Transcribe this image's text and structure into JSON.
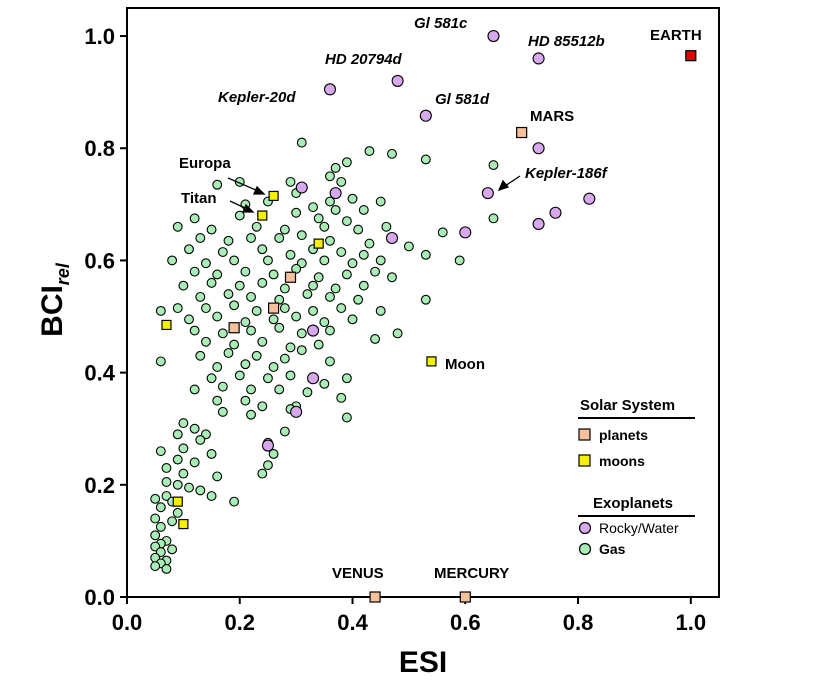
{
  "chart_data": {
    "type": "scatter",
    "xlabel": "ESI",
    "ylabel": "BCI",
    "ylabel_sub": "rel",
    "xlim": [
      0,
      1.05
    ],
    "ylim": [
      0,
      1.05
    ],
    "x_ticks": [
      "0.0",
      "0.2",
      "0.4",
      "0.6",
      "0.8",
      "1.0"
    ],
    "y_ticks": [
      "0.0",
      "0.2",
      "0.4",
      "0.6",
      "0.8",
      "1.0"
    ],
    "legend": {
      "solar_title": "Solar System",
      "planets_label": "planets",
      "moons_label": "moons",
      "exo_title": "Exoplanets",
      "rocky_label": "Rocky/Water",
      "gas_label": "Gas"
    },
    "colors": {
      "planet": "#f5c09a",
      "moon": "#f5f000",
      "rocky": "#d8a8ee",
      "gas": "#a8ecb6",
      "earth": "#e00000"
    },
    "series": [
      {
        "name": "EARTH",
        "category": "earth",
        "points": [
          [
            1.0,
            0.965
          ]
        ]
      },
      {
        "name": "planets",
        "category": "planet",
        "points": [
          [
            0.7,
            0.828
          ],
          [
            0.44,
            0.0
          ],
          [
            0.6,
            0.0
          ],
          [
            0.29,
            0.57
          ],
          [
            0.19,
            0.48
          ],
          [
            0.26,
            0.515
          ]
        ]
      },
      {
        "name": "moons",
        "category": "moon",
        "points": [
          [
            0.26,
            0.715
          ],
          [
            0.24,
            0.68
          ],
          [
            0.54,
            0.42
          ],
          [
            0.07,
            0.485
          ],
          [
            0.09,
            0.17
          ],
          [
            0.1,
            0.13
          ],
          [
            0.34,
            0.63
          ]
        ]
      },
      {
        "name": "Rocky/Water",
        "category": "rocky",
        "points": [
          [
            0.65,
            1.0
          ],
          [
            0.73,
            0.96
          ],
          [
            0.48,
            0.92
          ],
          [
            0.36,
            0.905
          ],
          [
            0.53,
            0.858
          ],
          [
            0.73,
            0.8
          ],
          [
            0.64,
            0.72
          ],
          [
            0.82,
            0.71
          ],
          [
            0.76,
            0.685
          ],
          [
            0.73,
            0.665
          ],
          [
            0.6,
            0.65
          ],
          [
            0.47,
            0.64
          ],
          [
            0.31,
            0.73
          ],
          [
            0.33,
            0.475
          ],
          [
            0.33,
            0.39
          ],
          [
            0.3,
            0.33
          ],
          [
            0.25,
            0.27
          ],
          [
            0.37,
            0.72
          ]
        ]
      },
      {
        "name": "Gas",
        "category": "gas",
        "points": [
          [
            0.31,
            0.81
          ],
          [
            0.43,
            0.795
          ],
          [
            0.47,
            0.79
          ],
          [
            0.53,
            0.78
          ],
          [
            0.65,
            0.77
          ],
          [
            0.39,
            0.775
          ],
          [
            0.37,
            0.765
          ],
          [
            0.36,
            0.75
          ],
          [
            0.38,
            0.74
          ],
          [
            0.16,
            0.735
          ],
          [
            0.2,
            0.74
          ],
          [
            0.29,
            0.74
          ],
          [
            0.3,
            0.72
          ],
          [
            0.36,
            0.705
          ],
          [
            0.4,
            0.71
          ],
          [
            0.45,
            0.705
          ],
          [
            0.21,
            0.7
          ],
          [
            0.25,
            0.705
          ],
          [
            0.33,
            0.695
          ],
          [
            0.37,
            0.69
          ],
          [
            0.42,
            0.69
          ],
          [
            0.12,
            0.675
          ],
          [
            0.2,
            0.68
          ],
          [
            0.3,
            0.685
          ],
          [
            0.34,
            0.675
          ],
          [
            0.39,
            0.67
          ],
          [
            0.09,
            0.66
          ],
          [
            0.15,
            0.655
          ],
          [
            0.23,
            0.66
          ],
          [
            0.28,
            0.655
          ],
          [
            0.35,
            0.66
          ],
          [
            0.41,
            0.655
          ],
          [
            0.46,
            0.66
          ],
          [
            0.56,
            0.65
          ],
          [
            0.65,
            0.675
          ],
          [
            0.13,
            0.64
          ],
          [
            0.18,
            0.635
          ],
          [
            0.22,
            0.64
          ],
          [
            0.27,
            0.64
          ],
          [
            0.31,
            0.645
          ],
          [
            0.36,
            0.635
          ],
          [
            0.43,
            0.63
          ],
          [
            0.5,
            0.625
          ],
          [
            0.11,
            0.62
          ],
          [
            0.17,
            0.615
          ],
          [
            0.24,
            0.62
          ],
          [
            0.29,
            0.61
          ],
          [
            0.33,
            0.62
          ],
          [
            0.38,
            0.615
          ],
          [
            0.42,
            0.61
          ],
          [
            0.08,
            0.6
          ],
          [
            0.14,
            0.595
          ],
          [
            0.19,
            0.6
          ],
          [
            0.25,
            0.6
          ],
          [
            0.31,
            0.595
          ],
          [
            0.35,
            0.6
          ],
          [
            0.4,
            0.595
          ],
          [
            0.45,
            0.6
          ],
          [
            0.53,
            0.61
          ],
          [
            0.59,
            0.6
          ],
          [
            0.12,
            0.58
          ],
          [
            0.16,
            0.575
          ],
          [
            0.21,
            0.58
          ],
          [
            0.26,
            0.575
          ],
          [
            0.3,
            0.585
          ],
          [
            0.34,
            0.57
          ],
          [
            0.39,
            0.575
          ],
          [
            0.44,
            0.58
          ],
          [
            0.1,
            0.555
          ],
          [
            0.15,
            0.56
          ],
          [
            0.2,
            0.555
          ],
          [
            0.24,
            0.56
          ],
          [
            0.28,
            0.55
          ],
          [
            0.33,
            0.555
          ],
          [
            0.37,
            0.55
          ],
          [
            0.42,
            0.555
          ],
          [
            0.47,
            0.57
          ],
          [
            0.13,
            0.535
          ],
          [
            0.18,
            0.54
          ],
          [
            0.22,
            0.535
          ],
          [
            0.27,
            0.53
          ],
          [
            0.32,
            0.54
          ],
          [
            0.36,
            0.535
          ],
          [
            0.41,
            0.53
          ],
          [
            0.53,
            0.53
          ],
          [
            0.06,
            0.51
          ],
          [
            0.09,
            0.515
          ],
          [
            0.14,
            0.515
          ],
          [
            0.19,
            0.52
          ],
          [
            0.23,
            0.51
          ],
          [
            0.28,
            0.515
          ],
          [
            0.33,
            0.51
          ],
          [
            0.38,
            0.515
          ],
          [
            0.45,
            0.51
          ],
          [
            0.11,
            0.495
          ],
          [
            0.16,
            0.5
          ],
          [
            0.21,
            0.49
          ],
          [
            0.26,
            0.495
          ],
          [
            0.3,
            0.5
          ],
          [
            0.35,
            0.49
          ],
          [
            0.4,
            0.495
          ],
          [
            0.12,
            0.475
          ],
          [
            0.17,
            0.47
          ],
          [
            0.22,
            0.475
          ],
          [
            0.27,
            0.48
          ],
          [
            0.31,
            0.47
          ],
          [
            0.36,
            0.475
          ],
          [
            0.44,
            0.46
          ],
          [
            0.48,
            0.47
          ],
          [
            0.14,
            0.455
          ],
          [
            0.19,
            0.45
          ],
          [
            0.24,
            0.455
          ],
          [
            0.29,
            0.445
          ],
          [
            0.34,
            0.45
          ],
          [
            0.06,
            0.42
          ],
          [
            0.13,
            0.43
          ],
          [
            0.18,
            0.435
          ],
          [
            0.23,
            0.43
          ],
          [
            0.28,
            0.425
          ],
          [
            0.31,
            0.44
          ],
          [
            0.16,
            0.41
          ],
          [
            0.21,
            0.415
          ],
          [
            0.26,
            0.41
          ],
          [
            0.36,
            0.42
          ],
          [
            0.15,
            0.39
          ],
          [
            0.2,
            0.395
          ],
          [
            0.25,
            0.39
          ],
          [
            0.29,
            0.395
          ],
          [
            0.35,
            0.38
          ],
          [
            0.39,
            0.39
          ],
          [
            0.12,
            0.37
          ],
          [
            0.17,
            0.375
          ],
          [
            0.22,
            0.37
          ],
          [
            0.27,
            0.37
          ],
          [
            0.32,
            0.365
          ],
          [
            0.38,
            0.355
          ],
          [
            0.16,
            0.35
          ],
          [
            0.21,
            0.35
          ],
          [
            0.24,
            0.34
          ],
          [
            0.3,
            0.34
          ],
          [
            0.39,
            0.32
          ],
          [
            0.17,
            0.33
          ],
          [
            0.22,
            0.325
          ],
          [
            0.29,
            0.335
          ],
          [
            0.1,
            0.31
          ],
          [
            0.12,
            0.3
          ],
          [
            0.14,
            0.29
          ],
          [
            0.28,
            0.295
          ],
          [
            0.09,
            0.29
          ],
          [
            0.13,
            0.28
          ],
          [
            0.25,
            0.275
          ],
          [
            0.06,
            0.26
          ],
          [
            0.1,
            0.265
          ],
          [
            0.15,
            0.255
          ],
          [
            0.26,
            0.255
          ],
          [
            0.09,
            0.245
          ],
          [
            0.12,
            0.24
          ],
          [
            0.07,
            0.23
          ],
          [
            0.25,
            0.235
          ],
          [
            0.1,
            0.22
          ],
          [
            0.16,
            0.215
          ],
          [
            0.24,
            0.22
          ],
          [
            0.07,
            0.205
          ],
          [
            0.09,
            0.2
          ],
          [
            0.11,
            0.195
          ],
          [
            0.13,
            0.19
          ],
          [
            0.07,
            0.18
          ],
          [
            0.15,
            0.18
          ],
          [
            0.05,
            0.175
          ],
          [
            0.08,
            0.17
          ],
          [
            0.19,
            0.17
          ],
          [
            0.06,
            0.16
          ],
          [
            0.09,
            0.15
          ],
          [
            0.05,
            0.14
          ],
          [
            0.08,
            0.135
          ],
          [
            0.06,
            0.125
          ],
          [
            0.05,
            0.11
          ],
          [
            0.07,
            0.1
          ],
          [
            0.06,
            0.095
          ],
          [
            0.05,
            0.09
          ],
          [
            0.08,
            0.085
          ],
          [
            0.06,
            0.08
          ],
          [
            0.05,
            0.07
          ],
          [
            0.07,
            0.065
          ],
          [
            0.06,
            0.06
          ],
          [
            0.05,
            0.055
          ],
          [
            0.07,
            0.05
          ]
        ]
      }
    ],
    "annotations": [
      {
        "text": "EARTH",
        "style": "bold"
      },
      {
        "text": "Gl 581c",
        "style": "italic"
      },
      {
        "text": "HD 85512b",
        "style": "italic"
      },
      {
        "text": "HD 20794d",
        "style": "italic"
      },
      {
        "text": "Kepler-20d",
        "style": "italic"
      },
      {
        "text": "Gl 581d",
        "style": "italic"
      },
      {
        "text": "MARS",
        "style": "bold"
      },
      {
        "text": "Europa",
        "style": "bold"
      },
      {
        "text": "Titan",
        "style": "bold"
      },
      {
        "text": "Kepler-186f",
        "style": "italic"
      },
      {
        "text": "Moon",
        "style": "bold"
      },
      {
        "text": "VENUS",
        "style": "bold"
      },
      {
        "text": "MERCURY",
        "style": "bold"
      }
    ]
  }
}
